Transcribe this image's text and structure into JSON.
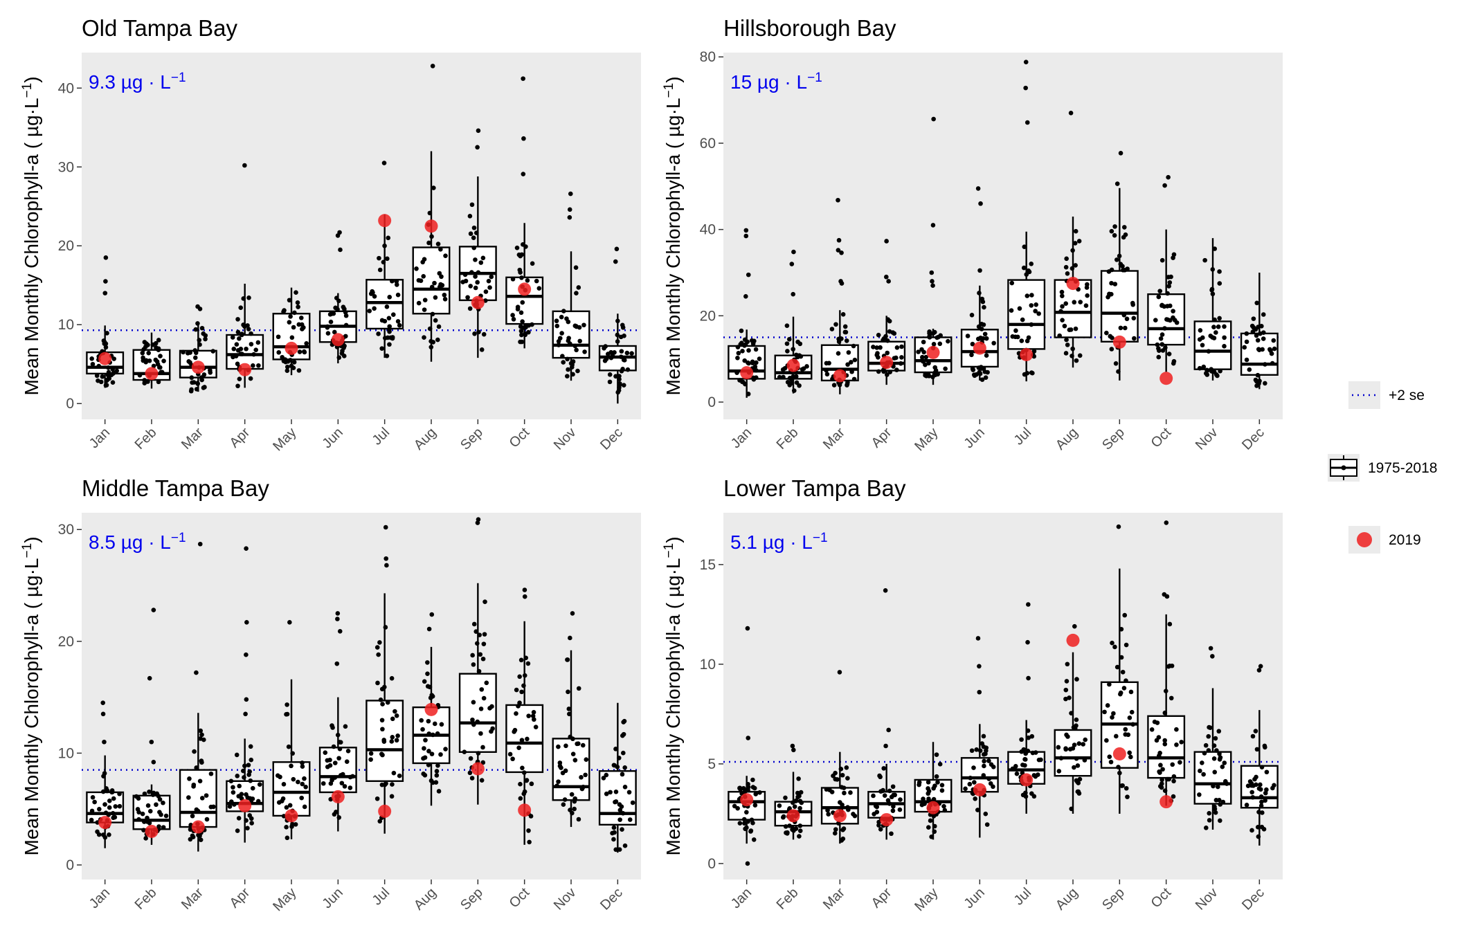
{
  "months": [
    "Jan",
    "Feb",
    "Mar",
    "Apr",
    "May",
    "Jun",
    "Jul",
    "Aug",
    "Sep",
    "Oct",
    "Nov",
    "Dec"
  ],
  "ylabel": "Mean Monthly Chlorophyll-a ( µg·L",
  "ylabel_exp": "−1",
  "ylabel_close": ")",
  "unit_text": "µg · L",
  "unit_exp": "−1",
  "legend": {
    "se": "+2 se",
    "box": "1975-2018",
    "point": "2019"
  },
  "colors": {
    "panel_bg": "#ebebeb",
    "threshold": "#0000cc",
    "highlight": "#ee2020",
    "dots": "#000000"
  },
  "chart_data": [
    {
      "type": "box",
      "title": "Old Tampa Bay",
      "threshold": 9.3,
      "threshold_label": "9.3",
      "ylim": [
        -2,
        44.5
      ],
      "yticks": [
        0,
        10,
        20,
        30,
        40
      ],
      "boxes": [
        {
          "month": "Jan",
          "q1": 3.8,
          "median": 4.6,
          "q3": 6.5,
          "lo": 2.0,
          "hi": 9.9,
          "out": [
            18.5,
            15.5,
            14.0
          ]
        },
        {
          "month": "Feb",
          "q1": 3.0,
          "median": 3.8,
          "q3": 6.8,
          "lo": 1.9,
          "hi": 9.0,
          "out": []
        },
        {
          "month": "Mar",
          "q1": 3.3,
          "median": 4.6,
          "q3": 6.7,
          "lo": 1.5,
          "hi": 10.3,
          "out": [
            12.3,
            12.0
          ]
        },
        {
          "month": "Apr",
          "q1": 4.4,
          "median": 6.2,
          "q3": 8.7,
          "lo": 2.0,
          "hi": 15.2,
          "out": [
            30.2
          ]
        },
        {
          "month": "May",
          "q1": 5.6,
          "median": 7.2,
          "q3": 11.4,
          "lo": 3.6,
          "hi": 14.7,
          "out": []
        },
        {
          "month": "Jun",
          "q1": 7.8,
          "median": 9.8,
          "q3": 11.7,
          "lo": 5.1,
          "hi": 14.0,
          "out": [
            21.7,
            21.3,
            19.5
          ]
        },
        {
          "month": "Jul",
          "q1": 9.5,
          "median": 12.8,
          "q3": 15.7,
          "lo": 5.8,
          "hi": 24.0,
          "out": [
            30.5
          ]
        },
        {
          "month": "Aug",
          "q1": 11.4,
          "median": 14.5,
          "q3": 19.8,
          "lo": 5.3,
          "hi": 32.0,
          "out": [
            42.8
          ]
        },
        {
          "month": "Sep",
          "q1": 13.1,
          "median": 16.5,
          "q3": 19.9,
          "lo": 5.8,
          "hi": 28.8,
          "out": [
            34.6,
            32.5
          ]
        },
        {
          "month": "Oct",
          "q1": 10.1,
          "median": 13.6,
          "q3": 16.0,
          "lo": 7.0,
          "hi": 22.9,
          "out": [
            41.2,
            33.6,
            29.1
          ]
        },
        {
          "month": "Nov",
          "q1": 5.8,
          "median": 7.4,
          "q3": 11.7,
          "lo": 2.9,
          "hi": 19.3,
          "out": [
            26.6,
            24.6,
            23.6
          ]
        },
        {
          "month": "Dec",
          "q1": 4.2,
          "median": 5.9,
          "q3": 7.3,
          "lo": 0.0,
          "hi": 11.4,
          "out": [
            19.6,
            18.0
          ]
        }
      ],
      "highlight": [
        5.7,
        3.8,
        4.6,
        4.3,
        7.0,
        8.1,
        23.2,
        22.5,
        12.8,
        14.5,
        null,
        null
      ]
    },
    {
      "type": "box",
      "title": "Hillsborough Bay",
      "threshold": 15,
      "threshold_label": "15",
      "ylim": [
        -4,
        81
      ],
      "yticks": [
        0,
        20,
        40,
        60,
        80
      ],
      "boxes": [
        {
          "month": "Jan",
          "q1": 5.4,
          "median": 7.2,
          "q3": 13.0,
          "lo": 1.0,
          "hi": 16.8,
          "out": [
            39.8,
            38.5,
            29.5,
            24.5
          ]
        },
        {
          "month": "Feb",
          "q1": 5.4,
          "median": 6.8,
          "q3": 10.8,
          "lo": 2.0,
          "hi": 19.8,
          "out": [
            34.8,
            32.0,
            25.0
          ]
        },
        {
          "month": "Mar",
          "q1": 5.0,
          "median": 7.6,
          "q3": 13.2,
          "lo": 1.8,
          "hi": 21.3,
          "out": [
            46.8,
            37.5,
            35.2,
            34.6,
            28.0,
            27.5
          ]
        },
        {
          "month": "Apr",
          "q1": 7.3,
          "median": 9.0,
          "q3": 14.0,
          "lo": 4.0,
          "hi": 20.0,
          "out": [
            37.3,
            29.0,
            28.0
          ]
        },
        {
          "month": "May",
          "q1": 6.9,
          "median": 9.6,
          "q3": 15.0,
          "lo": 4.0,
          "hi": 17.0,
          "out": [
            65.6,
            41.0,
            30.0,
            28.0,
            27.0
          ]
        },
        {
          "month": "Jun",
          "q1": 8.2,
          "median": 11.7,
          "q3": 16.8,
          "lo": 5.0,
          "hi": 27.0,
          "out": [
            49.5,
            46.0,
            30.5
          ]
        },
        {
          "month": "Jul",
          "q1": 12.3,
          "median": 18.0,
          "q3": 28.3,
          "lo": 4.8,
          "hi": 39.5,
          "out": [
            78.8,
            72.8,
            64.8
          ]
        },
        {
          "month": "Aug",
          "q1": 15.0,
          "median": 20.8,
          "q3": 28.3,
          "lo": 8.0,
          "hi": 43.0,
          "out": [
            67.0
          ]
        },
        {
          "month": "Sep",
          "q1": 14.0,
          "median": 20.6,
          "q3": 30.4,
          "lo": 5.0,
          "hi": 49.6,
          "out": [
            57.7,
            50.6
          ]
        },
        {
          "month": "Oct",
          "q1": 13.3,
          "median": 17.0,
          "q3": 25.0,
          "lo": 7.0,
          "hi": 40.0,
          "out": [
            52.1,
            50.2
          ]
        },
        {
          "month": "Nov",
          "q1": 7.6,
          "median": 11.8,
          "q3": 18.7,
          "lo": 5.0,
          "hi": 38.0,
          "out": []
        },
        {
          "month": "Dec",
          "q1": 6.3,
          "median": 8.8,
          "q3": 15.9,
          "lo": 3.0,
          "hi": 30.0,
          "out": []
        }
      ],
      "highlight": [
        6.8,
        8.5,
        6.1,
        9.2,
        11.5,
        12.5,
        11.0,
        27.5,
        13.9,
        5.5,
        null,
        null
      ]
    },
    {
      "type": "box",
      "title": "Middle Tampa Bay",
      "threshold": 8.5,
      "threshold_label": "8.5",
      "ylim": [
        -1.3,
        31.5
      ],
      "yticks": [
        0,
        10,
        20,
        30
      ],
      "boxes": [
        {
          "month": "Jan",
          "q1": 3.8,
          "median": 4.6,
          "q3": 6.5,
          "lo": 1.5,
          "hi": 9.8,
          "out": [
            14.5,
            13.5,
            11.0
          ]
        },
        {
          "month": "Feb",
          "q1": 3.2,
          "median": 4.0,
          "q3": 6.2,
          "lo": 1.8,
          "hi": 7.2,
          "out": [
            22.8,
            16.7,
            11.0,
            9.2
          ]
        },
        {
          "month": "Mar",
          "q1": 3.4,
          "median": 4.7,
          "q3": 8.5,
          "lo": 1.2,
          "hi": 13.6,
          "out": [
            28.7,
            17.2
          ]
        },
        {
          "month": "Apr",
          "q1": 4.8,
          "median": 5.5,
          "q3": 7.5,
          "lo": 2.0,
          "hi": 11.3,
          "out": [
            28.3,
            21.7,
            18.8,
            14.8,
            13.5
          ]
        },
        {
          "month": "May",
          "q1": 4.4,
          "median": 6.5,
          "q3": 9.2,
          "lo": 2.3,
          "hi": 16.6,
          "out": [
            21.7
          ]
        },
        {
          "month": "Jun",
          "q1": 6.5,
          "median": 7.9,
          "q3": 10.5,
          "lo": 3.0,
          "hi": 15.0,
          "out": [
            22.5,
            22.0,
            20.9,
            18.0
          ]
        },
        {
          "month": "Jul",
          "q1": 7.5,
          "median": 10.3,
          "q3": 14.7,
          "lo": 2.8,
          "hi": 24.3,
          "out": [
            30.2,
            27.4,
            26.8
          ]
        },
        {
          "month": "Aug",
          "q1": 9.1,
          "median": 11.6,
          "q3": 14.1,
          "lo": 5.3,
          "hi": 19.5,
          "out": [
            22.4,
            21.1
          ]
        },
        {
          "month": "Sep",
          "q1": 10.1,
          "median": 12.7,
          "q3": 17.1,
          "lo": 5.4,
          "hi": 25.2,
          "out": [
            30.9,
            30.6
          ]
        },
        {
          "month": "Oct",
          "q1": 8.3,
          "median": 10.9,
          "q3": 14.3,
          "lo": 1.8,
          "hi": 21.8,
          "out": [
            24.6,
            24.0
          ]
        },
        {
          "month": "Nov",
          "q1": 5.8,
          "median": 7.0,
          "q3": 11.3,
          "lo": 3.4,
          "hi": 19.2,
          "out": [
            22.5,
            20.3
          ]
        },
        {
          "month": "Dec",
          "q1": 3.6,
          "median": 4.6,
          "q3": 8.4,
          "lo": 1.1,
          "hi": 14.5,
          "out": []
        }
      ],
      "highlight": [
        3.8,
        3.0,
        3.4,
        5.3,
        4.4,
        6.1,
        4.8,
        13.9,
        8.6,
        4.9,
        null,
        null
      ]
    },
    {
      "type": "box",
      "title": "Lower Tampa Bay",
      "threshold": 5.1,
      "threshold_label": "5.1",
      "ylim": [
        -0.8,
        17.6
      ],
      "yticks": [
        0,
        5,
        10,
        15
      ],
      "boxes": [
        {
          "month": "Jan",
          "q1": 2.2,
          "median": 3.1,
          "q3": 3.6,
          "lo": 1.0,
          "hi": 4.4,
          "out": [
            11.8,
            6.3,
            0.0
          ]
        },
        {
          "month": "Feb",
          "q1": 1.9,
          "median": 2.6,
          "q3": 3.1,
          "lo": 1.2,
          "hi": 4.6,
          "out": [
            5.9,
            5.7
          ]
        },
        {
          "month": "Mar",
          "q1": 2.0,
          "median": 2.8,
          "q3": 3.8,
          "lo": 1.0,
          "hi": 5.6,
          "out": [
            9.6
          ]
        },
        {
          "month": "Apr",
          "q1": 2.3,
          "median": 3.0,
          "q3": 3.6,
          "lo": 1.2,
          "hi": 5.0,
          "out": [
            13.7,
            6.7,
            5.9
          ]
        },
        {
          "month": "May",
          "q1": 2.6,
          "median": 3.1,
          "q3": 4.2,
          "lo": 1.2,
          "hi": 6.1,
          "out": []
        },
        {
          "month": "Jun",
          "q1": 3.6,
          "median": 4.3,
          "q3": 5.3,
          "lo": 1.3,
          "hi": 7.0,
          "out": [
            11.3,
            9.9,
            8.6
          ]
        },
        {
          "month": "Jul",
          "q1": 4.0,
          "median": 4.7,
          "q3": 5.6,
          "lo": 2.5,
          "hi": 7.2,
          "out": [
            13.0,
            11.1,
            9.3
          ]
        },
        {
          "month": "Aug",
          "q1": 4.4,
          "median": 5.3,
          "q3": 6.7,
          "lo": 2.5,
          "hi": 10.6,
          "out": [
            11.9
          ]
        },
        {
          "month": "Sep",
          "q1": 4.8,
          "median": 7.0,
          "q3": 9.1,
          "lo": 2.5,
          "hi": 14.8,
          "out": [
            16.9
          ]
        },
        {
          "month": "Oct",
          "q1": 4.3,
          "median": 5.3,
          "q3": 7.4,
          "lo": 2.9,
          "hi": 12.5,
          "out": [
            17.1,
            13.5,
            13.4
          ]
        },
        {
          "month": "Nov",
          "q1": 3.0,
          "median": 4.0,
          "q3": 5.6,
          "lo": 1.7,
          "hi": 8.8,
          "out": [
            10.8,
            10.4
          ]
        },
        {
          "month": "Dec",
          "q1": 2.8,
          "median": 3.3,
          "q3": 4.9,
          "lo": 0.9,
          "hi": 7.7,
          "out": [
            9.9,
            9.7
          ]
        }
      ],
      "highlight": [
        3.2,
        2.4,
        2.4,
        2.2,
        2.8,
        3.7,
        4.2,
        11.2,
        5.5,
        3.1,
        null,
        null
      ]
    }
  ]
}
